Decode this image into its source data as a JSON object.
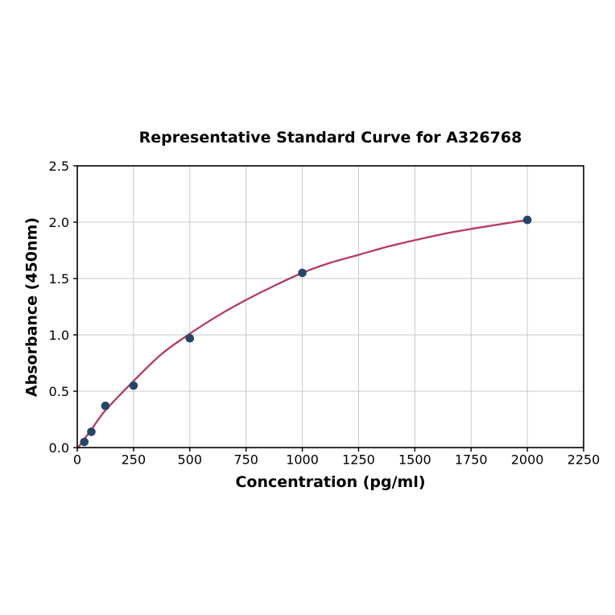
{
  "figure": {
    "background": "#ffffff"
  },
  "chart_data": {
    "type": "scatter",
    "title": "Representative Standard Curve for A326768",
    "xlabel": "Concentration (pg/ml)",
    "ylabel": "Absorbance (450nm)",
    "xlim": [
      0,
      2250
    ],
    "ylim": [
      0,
      2.5
    ],
    "x_ticks": [
      0,
      250,
      500,
      750,
      1000,
      1250,
      1500,
      1750,
      2000,
      2250
    ],
    "x_tick_labels": [
      "0",
      "250",
      "500",
      "750",
      "1000",
      "1250",
      "1500",
      "1750",
      "2000",
      "2250"
    ],
    "y_ticks": [
      0,
      0.5,
      1,
      1.5,
      2,
      2.5
    ],
    "y_tick_labels": [
      "0.0",
      "0.5",
      "1.0",
      "1.5",
      "2.0",
      "2.5"
    ],
    "grid": true,
    "legend": "none",
    "series": [
      {
        "name": "fit-curve",
        "type": "line",
        "x": [
          0,
          62.5,
          125,
          250,
          375,
          500,
          625,
          750,
          875,
          1000,
          1125,
          1250,
          1375,
          1500,
          1625,
          1750,
          1875,
          2000
        ],
        "y": [
          -0.01,
          0.16,
          0.33,
          0.59,
          0.83,
          1.01,
          1.17,
          1.31,
          1.435,
          1.55,
          1.64,
          1.71,
          1.78,
          1.84,
          1.895,
          1.94,
          1.98,
          2.02
        ],
        "color": "#b53a61"
      },
      {
        "name": "standard-points",
        "type": "scatter",
        "x": [
          31.25,
          62.5,
          125,
          250,
          500,
          1000,
          2000
        ],
        "y": [
          0.05,
          0.14,
          0.37,
          0.55,
          0.97,
          1.55,
          2.02
        ],
        "color": "#264668"
      }
    ],
    "colors": {
      "grid": "#c9c9c9",
      "axis": "#000000",
      "text": "#000000"
    }
  }
}
